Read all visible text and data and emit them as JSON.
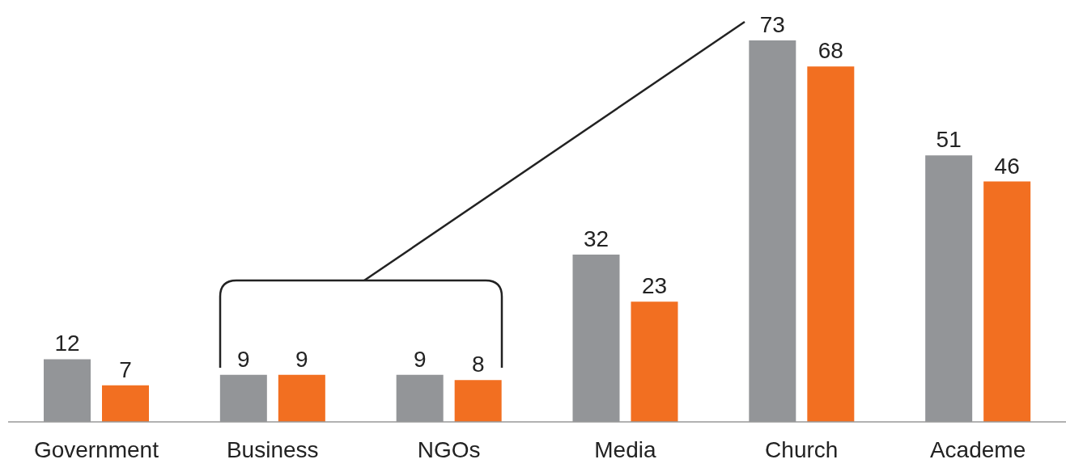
{
  "chart_data": {
    "type": "bar",
    "categories": [
      "Government",
      "Business",
      "NGOs",
      "Media",
      "Church",
      "Academe"
    ],
    "series": [
      {
        "color": "#939598",
        "values": [
          12,
          9,
          9,
          32,
          73,
          51
        ]
      },
      {
        "color": "#f26f21",
        "values": [
          7,
          9,
          8,
          23,
          68,
          46
        ]
      }
    ],
    "data_labels": true,
    "grid": false,
    "legend": false,
    "tick_labels": "x"
  }
}
